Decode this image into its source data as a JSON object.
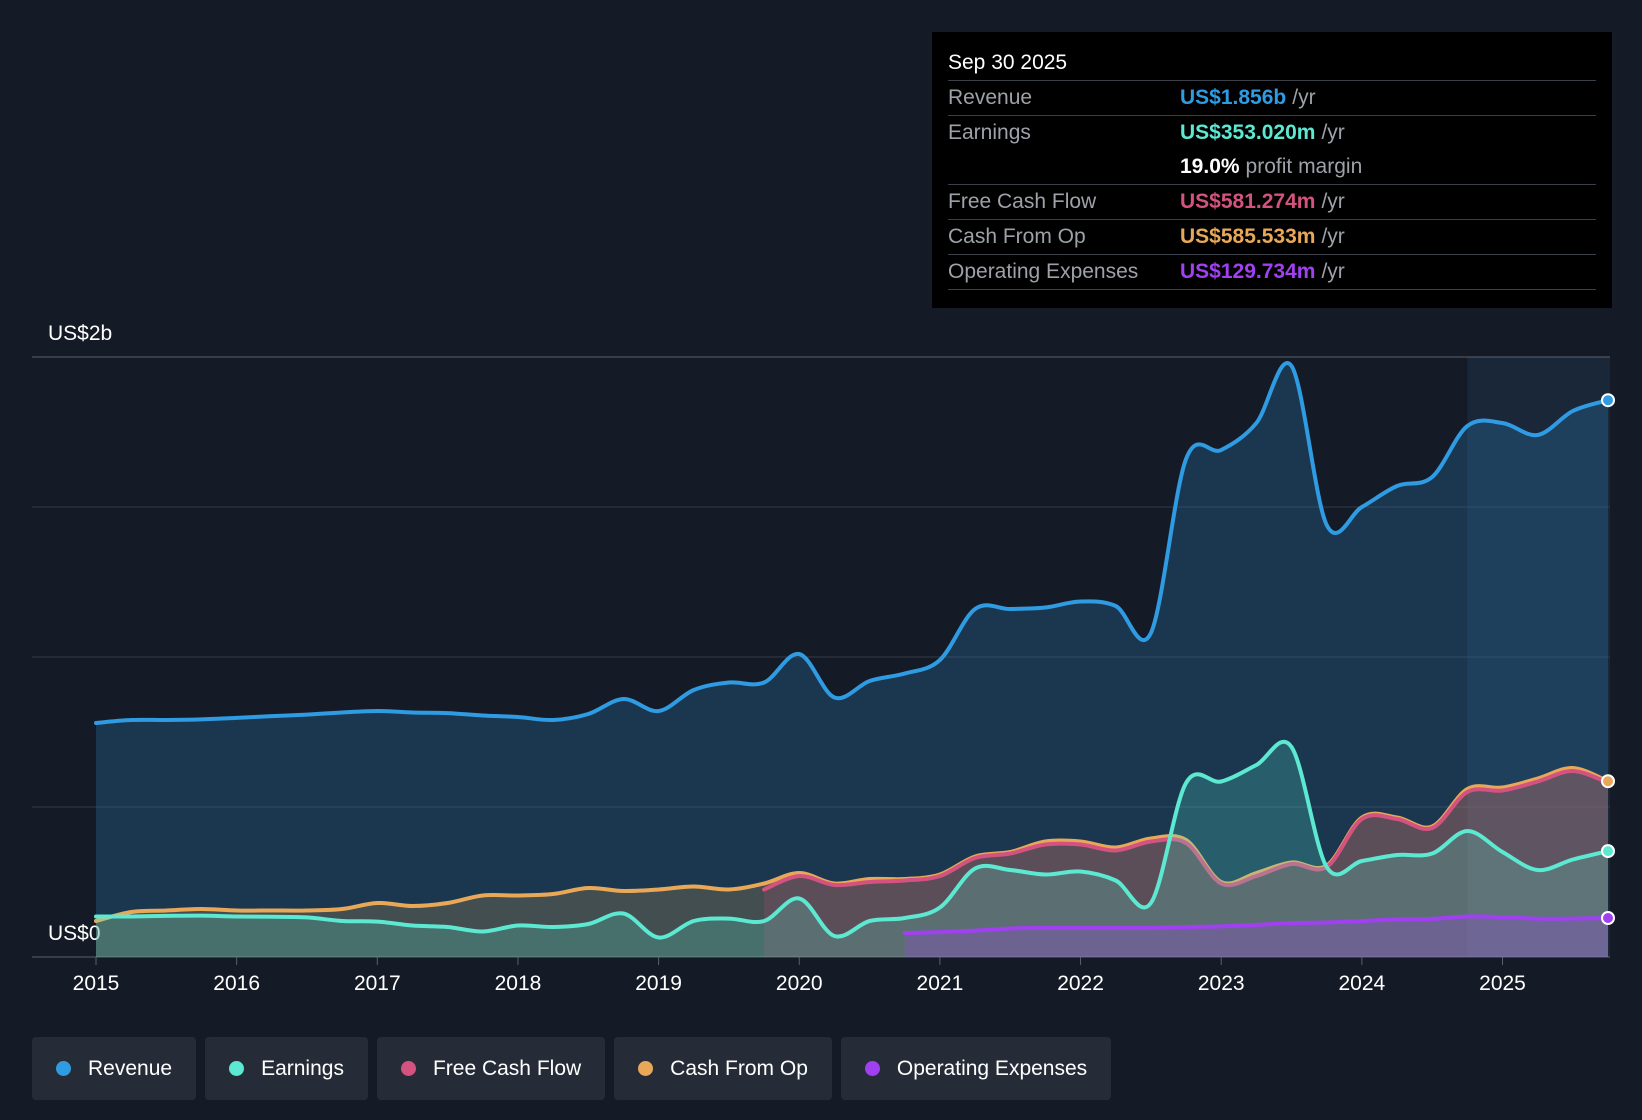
{
  "tooltip": {
    "date": "Sep 30 2025",
    "rows": [
      {
        "label": "Revenue",
        "value": "US$1.856b",
        "unit": "/yr",
        "color": "#2f9be3"
      },
      {
        "label": "Earnings",
        "value": "US$353.020m",
        "unit": "/yr",
        "color": "#5ce8d1"
      },
      {
        "label": "",
        "value": "19.0%",
        "unit": "profit margin",
        "color": "#ffffff"
      },
      {
        "label": "Free Cash Flow",
        "value": "US$581.274m",
        "unit": "/yr",
        "color": "#d4527f"
      },
      {
        "label": "Cash From Op",
        "value": "US$585.533m",
        "unit": "/yr",
        "color": "#e8a857"
      },
      {
        "label": "Operating Expenses",
        "value": "US$129.734m",
        "unit": "/yr",
        "color": "#a040f0"
      }
    ]
  },
  "legend": [
    {
      "label": "Revenue",
      "color": "#2f9be3"
    },
    {
      "label": "Earnings",
      "color": "#5ce8d1"
    },
    {
      "label": "Free Cash Flow",
      "color": "#d4527f"
    },
    {
      "label": "Cash From Op",
      "color": "#e8a857"
    },
    {
      "label": "Operating Expenses",
      "color": "#a040f0"
    }
  ],
  "chart_data": {
    "type": "area",
    "y_top_label": "US$2b",
    "y_bottom_label": "US$0",
    "ylim": [
      0,
      2
    ],
    "y_unit": "billions USD",
    "xlim": [
      2015,
      2025.75
    ],
    "x_ticks": [
      "2015",
      "2016",
      "2017",
      "2018",
      "2019",
      "2020",
      "2021",
      "2022",
      "2023",
      "2024",
      "2025"
    ],
    "forecast_start": 2024.75,
    "series": [
      {
        "name": "Revenue",
        "color": "#2f9be3",
        "points": [
          [
            2015.0,
            0.78
          ],
          [
            2015.25,
            0.79
          ],
          [
            2015.5,
            0.79
          ],
          [
            2015.75,
            0.792
          ],
          [
            2016.0,
            0.797
          ],
          [
            2016.25,
            0.803
          ],
          [
            2016.5,
            0.808
          ],
          [
            2016.75,
            0.815
          ],
          [
            2017.0,
            0.82
          ],
          [
            2017.25,
            0.815
          ],
          [
            2017.5,
            0.813
          ],
          [
            2017.75,
            0.805
          ],
          [
            2018.0,
            0.8
          ],
          [
            2018.25,
            0.79
          ],
          [
            2018.5,
            0.81
          ],
          [
            2018.75,
            0.86
          ],
          [
            2019.0,
            0.82
          ],
          [
            2019.25,
            0.89
          ],
          [
            2019.5,
            0.915
          ],
          [
            2019.75,
            0.915
          ],
          [
            2020.0,
            1.01
          ],
          [
            2020.25,
            0.865
          ],
          [
            2020.5,
            0.92
          ],
          [
            2020.75,
            0.945
          ],
          [
            2021.0,
            0.99
          ],
          [
            2021.25,
            1.16
          ],
          [
            2021.5,
            1.16
          ],
          [
            2021.75,
            1.165
          ],
          [
            2022.0,
            1.185
          ],
          [
            2022.25,
            1.17
          ],
          [
            2022.5,
            1.08
          ],
          [
            2022.75,
            1.66
          ],
          [
            2023.0,
            1.69
          ],
          [
            2023.25,
            1.78
          ],
          [
            2023.5,
            1.97
          ],
          [
            2023.75,
            1.44
          ],
          [
            2024.0,
            1.5
          ],
          [
            2024.25,
            1.57
          ],
          [
            2024.5,
            1.6
          ],
          [
            2024.75,
            1.77
          ],
          [
            2025.0,
            1.78
          ],
          [
            2025.25,
            1.74
          ],
          [
            2025.5,
            1.82
          ],
          [
            2025.75,
            1.856
          ]
        ]
      },
      {
        "name": "Earnings",
        "color": "#5ce8d1",
        "points": [
          [
            2015.0,
            0.135
          ],
          [
            2015.25,
            0.135
          ],
          [
            2015.5,
            0.137
          ],
          [
            2015.75,
            0.138
          ],
          [
            2016.0,
            0.135
          ],
          [
            2016.25,
            0.134
          ],
          [
            2016.5,
            0.132
          ],
          [
            2016.75,
            0.12
          ],
          [
            2017.0,
            0.118
          ],
          [
            2017.25,
            0.105
          ],
          [
            2017.5,
            0.1
          ],
          [
            2017.75,
            0.085
          ],
          [
            2018.0,
            0.105
          ],
          [
            2018.25,
            0.1
          ],
          [
            2018.5,
            0.11
          ],
          [
            2018.75,
            0.145
          ],
          [
            2019.0,
            0.065
          ],
          [
            2019.25,
            0.12
          ],
          [
            2019.5,
            0.128
          ],
          [
            2019.75,
            0.12
          ],
          [
            2020.0,
            0.195
          ],
          [
            2020.25,
            0.07
          ],
          [
            2020.5,
            0.12
          ],
          [
            2020.75,
            0.13
          ],
          [
            2021.0,
            0.165
          ],
          [
            2021.25,
            0.295
          ],
          [
            2021.5,
            0.29
          ],
          [
            2021.75,
            0.275
          ],
          [
            2022.0,
            0.285
          ],
          [
            2022.25,
            0.255
          ],
          [
            2022.5,
            0.18
          ],
          [
            2022.75,
            0.58
          ],
          [
            2023.0,
            0.585
          ],
          [
            2023.25,
            0.64
          ],
          [
            2023.5,
            0.7
          ],
          [
            2023.75,
            0.3
          ],
          [
            2024.0,
            0.32
          ],
          [
            2024.25,
            0.34
          ],
          [
            2024.5,
            0.345
          ],
          [
            2024.75,
            0.42
          ],
          [
            2025.0,
            0.35
          ],
          [
            2025.25,
            0.29
          ],
          [
            2025.5,
            0.325
          ],
          [
            2025.75,
            0.353
          ]
        ]
      },
      {
        "name": "Free Cash Flow",
        "color": "#d4527f",
        "points": [
          [
            2019.75,
            0.225
          ],
          [
            2020.0,
            0.27
          ],
          [
            2020.25,
            0.24
          ],
          [
            2020.5,
            0.25
          ],
          [
            2020.75,
            0.255
          ],
          [
            2021.0,
            0.27
          ],
          [
            2021.25,
            0.33
          ],
          [
            2021.5,
            0.345
          ],
          [
            2021.75,
            0.375
          ],
          [
            2022.0,
            0.375
          ],
          [
            2022.25,
            0.355
          ],
          [
            2022.5,
            0.385
          ],
          [
            2022.75,
            0.38
          ],
          [
            2023.0,
            0.245
          ],
          [
            2023.25,
            0.27
          ],
          [
            2023.5,
            0.31
          ],
          [
            2023.75,
            0.3
          ],
          [
            2024.0,
            0.46
          ],
          [
            2024.25,
            0.46
          ],
          [
            2024.5,
            0.43
          ],
          [
            2024.75,
            0.55
          ],
          [
            2025.0,
            0.555
          ],
          [
            2025.25,
            0.585
          ],
          [
            2025.5,
            0.62
          ],
          [
            2025.75,
            0.581
          ]
        ]
      },
      {
        "name": "Cash From Op",
        "color": "#e8a857",
        "points": [
          [
            2015.0,
            0.12
          ],
          [
            2015.25,
            0.15
          ],
          [
            2015.5,
            0.155
          ],
          [
            2015.75,
            0.16
          ],
          [
            2016.0,
            0.155
          ],
          [
            2016.25,
            0.155
          ],
          [
            2016.5,
            0.155
          ],
          [
            2016.75,
            0.16
          ],
          [
            2017.0,
            0.18
          ],
          [
            2017.25,
            0.17
          ],
          [
            2017.5,
            0.18
          ],
          [
            2017.75,
            0.205
          ],
          [
            2018.0,
            0.205
          ],
          [
            2018.25,
            0.21
          ],
          [
            2018.5,
            0.23
          ],
          [
            2018.75,
            0.22
          ],
          [
            2019.0,
            0.225
          ],
          [
            2019.25,
            0.235
          ],
          [
            2019.5,
            0.225
          ],
          [
            2019.75,
            0.245
          ],
          [
            2020.0,
            0.28
          ],
          [
            2020.25,
            0.245
          ],
          [
            2020.5,
            0.26
          ],
          [
            2020.75,
            0.26
          ],
          [
            2021.0,
            0.275
          ],
          [
            2021.25,
            0.335
          ],
          [
            2021.5,
            0.35
          ],
          [
            2021.75,
            0.385
          ],
          [
            2022.0,
            0.385
          ],
          [
            2022.25,
            0.365
          ],
          [
            2022.5,
            0.395
          ],
          [
            2022.75,
            0.39
          ],
          [
            2023.0,
            0.25
          ],
          [
            2023.25,
            0.28
          ],
          [
            2023.5,
            0.315
          ],
          [
            2023.75,
            0.305
          ],
          [
            2024.0,
            0.465
          ],
          [
            2024.25,
            0.465
          ],
          [
            2024.5,
            0.435
          ],
          [
            2024.75,
            0.56
          ],
          [
            2025.0,
            0.565
          ],
          [
            2025.25,
            0.595
          ],
          [
            2025.5,
            0.63
          ],
          [
            2025.75,
            0.586
          ]
        ]
      },
      {
        "name": "Operating Expenses",
        "color": "#a040f0",
        "points": [
          [
            2020.75,
            0.08
          ],
          [
            2021.0,
            0.083
          ],
          [
            2021.25,
            0.088
          ],
          [
            2021.5,
            0.095
          ],
          [
            2021.75,
            0.097
          ],
          [
            2022.0,
            0.097
          ],
          [
            2022.25,
            0.097
          ],
          [
            2022.5,
            0.097
          ],
          [
            2022.75,
            0.1
          ],
          [
            2023.0,
            0.102
          ],
          [
            2023.25,
            0.107
          ],
          [
            2023.5,
            0.113
          ],
          [
            2023.75,
            0.115
          ],
          [
            2024.0,
            0.12
          ],
          [
            2024.25,
            0.125
          ],
          [
            2024.5,
            0.127
          ],
          [
            2024.75,
            0.135
          ],
          [
            2025.0,
            0.133
          ],
          [
            2025.25,
            0.128
          ],
          [
            2025.5,
            0.128
          ],
          [
            2025.75,
            0.13
          ]
        ]
      }
    ]
  }
}
